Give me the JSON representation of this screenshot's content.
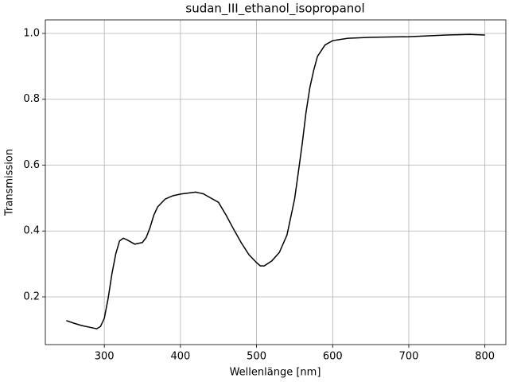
{
  "chart_data": {
    "type": "line",
    "title": "sudan_III_ethanol_isopropanol",
    "x_label": "Wellenlänge [nm]",
    "y_label": "Transmission",
    "x": [
      250,
      260,
      270,
      280,
      290,
      295,
      300,
      305,
      310,
      315,
      320,
      325,
      330,
      340,
      350,
      355,
      360,
      365,
      370,
      380,
      390,
      400,
      410,
      420,
      430,
      440,
      450,
      460,
      470,
      480,
      490,
      500,
      505,
      510,
      520,
      530,
      540,
      550,
      555,
      560,
      565,
      570,
      575,
      580,
      590,
      600,
      620,
      650,
      700,
      750,
      780,
      800
    ],
    "values": [
      0.128,
      0.12,
      0.113,
      0.108,
      0.103,
      0.11,
      0.135,
      0.195,
      0.27,
      0.33,
      0.37,
      0.378,
      0.373,
      0.36,
      0.365,
      0.38,
      0.41,
      0.448,
      0.473,
      0.497,
      0.507,
      0.512,
      0.515,
      0.518,
      0.513,
      0.5,
      0.487,
      0.448,
      0.405,
      0.364,
      0.328,
      0.304,
      0.294,
      0.294,
      0.309,
      0.335,
      0.388,
      0.497,
      0.58,
      0.665,
      0.76,
      0.835,
      0.887,
      0.93,
      0.965,
      0.978,
      0.985,
      0.988,
      0.99,
      0.995,
      0.997,
      0.995
    ],
    "color": "#000000",
    "xlim": [
      222.5,
      827.5
    ],
    "xticks": [
      300,
      400,
      500,
      600,
      700,
      800
    ],
    "ylim": [
      0.055,
      1.041
    ],
    "yticks": [
      0.2,
      0.4,
      0.6,
      0.8,
      {
        "value": 1.0,
        "label": "1.0"
      }
    ],
    "grid": true
  }
}
